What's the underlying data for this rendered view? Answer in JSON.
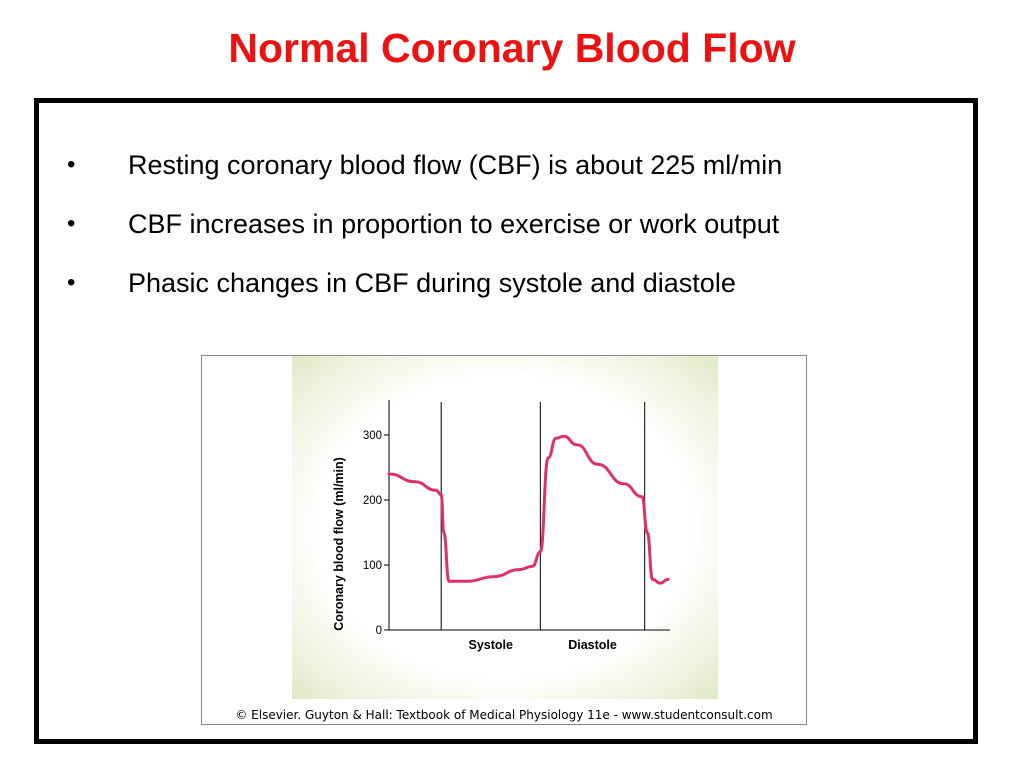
{
  "title": "Normal Coronary Blood Flow",
  "colors": {
    "title": "#ee1111",
    "curve": "#e0306a",
    "axis": "#000000",
    "panel": "#e3ebcc"
  },
  "bullets": [
    {
      "marker": "•",
      "text": "Resting coronary blood flow (CBF) is about 225 ml/min"
    },
    {
      "marker": "•",
      "text": "CBF increases in proportion to exercise or work output"
    },
    {
      "marker": "•",
      "text": "Phasic changes in CBF during systole and diastole"
    }
  ],
  "figure": {
    "credit": "© Elsevier. Guyton & Hall: Textbook of Medical Physiology 11e - www.studentconsult.com"
  },
  "chart_data": {
    "type": "line",
    "ylabel": "Coronary blood flow (ml/min)",
    "xlabel": "",
    "ylim": [
      0,
      320
    ],
    "yticks": [
      0,
      100,
      200,
      300
    ],
    "phases": [
      {
        "name": "Systole",
        "start": 1.0,
        "end": 2.9
      },
      {
        "name": "Diastole",
        "start": 2.9,
        "end": 4.9
      }
    ],
    "cycle_markers": [
      1.0,
      2.9,
      4.9
    ],
    "xlim": [
      0,
      5.5
    ],
    "grid": false,
    "series": [
      {
        "x": [
          0,
          0.5,
          0.9,
          1.0,
          1.05,
          1.15,
          1.5,
          2.0,
          2.5,
          2.75,
          2.9,
          3.05,
          3.2,
          3.35,
          3.6,
          4.0,
          4.5,
          4.85,
          4.95,
          5.05,
          5.2,
          5.35
        ],
        "y": [
          240,
          228,
          215,
          208,
          150,
          75,
          75,
          82,
          93,
          98,
          120,
          265,
          295,
          298,
          285,
          255,
          225,
          205,
          150,
          78,
          72,
          78
        ]
      }
    ]
  }
}
